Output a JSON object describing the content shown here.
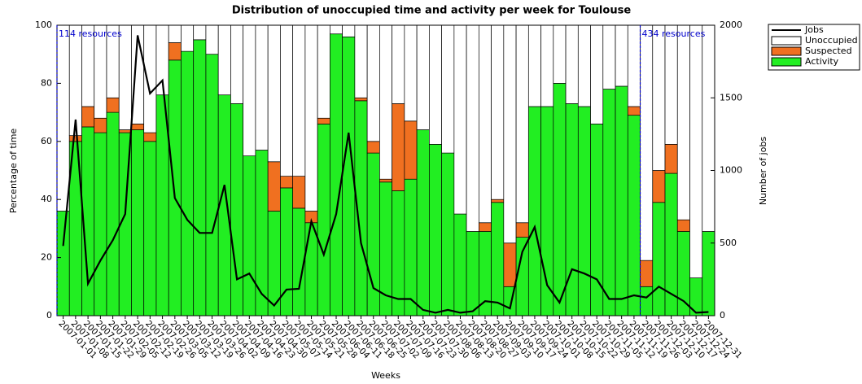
{
  "chart_data": {
    "type": "stacked-bar-line",
    "title": "Distribution of unoccupied time and activity per week for Toulouse",
    "xlabel": "Weeks",
    "ylabel": "Percentage of time",
    "y2label": "Number of jobs",
    "categories": [
      "2007-01-01",
      "2007-01-08",
      "2007-01-15",
      "2007-01-22",
      "2007-01-29",
      "2007-02-05",
      "2007-02-12",
      "2007-02-19",
      "2007-02-26",
      "2007-03-05",
      "2007-03-12",
      "2007-03-19",
      "2007-03-26",
      "2007-04-02",
      "2007-04-09",
      "2007-04-16",
      "2007-04-23",
      "2007-04-30",
      "2007-05-07",
      "2007-05-14",
      "2007-05-21",
      "2007-05-28",
      "2007-06-04",
      "2007-06-11",
      "2007-06-18",
      "2007-06-25",
      "2007-07-02",
      "2007-07-09",
      "2007-07-16",
      "2007-07-23",
      "2007-07-30",
      "2007-08-06",
      "2007-08-13",
      "2007-08-20",
      "2007-08-27",
      "2007-09-03",
      "2007-09-10",
      "2007-09-17",
      "2007-09-24",
      "2007-10-01",
      "2007-10-08",
      "2007-10-15",
      "2007-10-22",
      "2007-10-29",
      "2007-11-05",
      "2007-11-12",
      "2007-11-19",
      "2007-11-26",
      "2007-12-03",
      "2007-12-10",
      "2007-12-17",
      "2007-12-24",
      "2007-12-31"
    ],
    "series": [
      {
        "name": "Jobs",
        "color": "#000000",
        "type": "line",
        "axis": "y2",
        "values": [
          480,
          1350,
          220,
          380,
          520,
          700,
          1930,
          1530,
          1620,
          810,
          660,
          570,
          570,
          900,
          250,
          290,
          150,
          70,
          180,
          185,
          650,
          420,
          700,
          1260,
          500,
          190,
          140,
          115,
          115,
          40,
          20,
          40,
          20,
          30,
          100,
          90,
          50,
          440,
          610,
          210,
          90,
          320,
          290,
          250,
          115,
          115,
          140,
          125,
          200,
          150,
          100,
          20,
          25
        ]
      },
      {
        "name": "Unoccupied",
        "color": "#ffffff",
        "type": "bar",
        "values": [
          64,
          38,
          28,
          32,
          25,
          36,
          34,
          37,
          24,
          6,
          9,
          5,
          10,
          24,
          27,
          45,
          43,
          47,
          52,
          52,
          64,
          32,
          3,
          4,
          25,
          40,
          53,
          27,
          33,
          36,
          41,
          44,
          65,
          71,
          68,
          60,
          75,
          68,
          28,
          28,
          20,
          27,
          28,
          34,
          22,
          21,
          28,
          81,
          50,
          41,
          67,
          87,
          71
        ]
      },
      {
        "name": "Suspected",
        "color": "#f07020",
        "type": "bar",
        "values": [
          0,
          2,
          7,
          5,
          5,
          1,
          2,
          3,
          0,
          6,
          0,
          0,
          0,
          0,
          0,
          0,
          0,
          17,
          4,
          11,
          4,
          2,
          0,
          0,
          1,
          4,
          1,
          30,
          20,
          0,
          0,
          0,
          0,
          0,
          3,
          1,
          15,
          5,
          0,
          0,
          0,
          0,
          0,
          0,
          0,
          0,
          3,
          9,
          11,
          10,
          4,
          0,
          0
        ]
      },
      {
        "name": "Activity",
        "color": "#22ee22",
        "type": "bar",
        "values": [
          36,
          60,
          65,
          63,
          70,
          63,
          64,
          60,
          76,
          88,
          91,
          95,
          90,
          76,
          73,
          55,
          57,
          36,
          44,
          37,
          32,
          66,
          97,
          96,
          74,
          56,
          46,
          43,
          47,
          64,
          59,
          56,
          35,
          29,
          29,
          39,
          10,
          27,
          72,
          72,
          80,
          73,
          72,
          66,
          78,
          79,
          69,
          10,
          39,
          49,
          29,
          13,
          29
        ]
      }
    ],
    "ylim": [
      0,
      100
    ],
    "yticks": [
      0,
      20,
      40,
      60,
      80,
      100
    ],
    "y2lim": [
      0,
      2000
    ],
    "y2ticks": [
      0,
      500,
      1000,
      1500,
      2000
    ],
    "annotations": [
      {
        "text": "114 resources",
        "category": "2007-01-01"
      },
      {
        "text": "434 resources",
        "category": "2007-11-26"
      }
    ],
    "legend": "outside-top-right",
    "grid": false
  }
}
